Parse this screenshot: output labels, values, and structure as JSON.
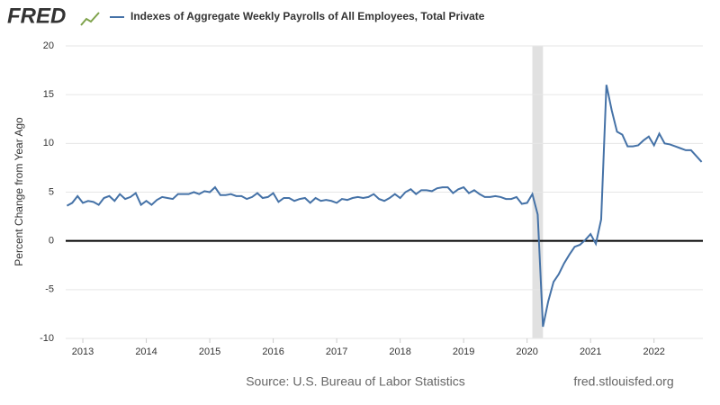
{
  "logo": "FRED",
  "chart_data": {
    "type": "line",
    "ylabel": "Percent Change from Year Ago",
    "source": "Source: U.S. Bureau of Labor Statistics",
    "site": "fred.stlouisfed.org",
    "x": [
      2012.75,
      2012.833,
      2012.917,
      2013.0,
      2013.083,
      2013.167,
      2013.25,
      2013.333,
      2013.417,
      2013.5,
      2013.583,
      2013.667,
      2013.75,
      2013.833,
      2013.917,
      2014.0,
      2014.083,
      2014.167,
      2014.25,
      2014.333,
      2014.417,
      2014.5,
      2014.583,
      2014.667,
      2014.75,
      2014.833,
      2014.917,
      2015.0,
      2015.083,
      2015.167,
      2015.25,
      2015.333,
      2015.417,
      2015.5,
      2015.583,
      2015.667,
      2015.75,
      2015.833,
      2015.917,
      2016.0,
      2016.083,
      2016.167,
      2016.25,
      2016.333,
      2016.417,
      2016.5,
      2016.583,
      2016.667,
      2016.75,
      2016.833,
      2016.917,
      2017.0,
      2017.083,
      2017.167,
      2017.25,
      2017.333,
      2017.417,
      2017.5,
      2017.583,
      2017.667,
      2017.75,
      2017.833,
      2017.917,
      2018.0,
      2018.083,
      2018.167,
      2018.25,
      2018.333,
      2018.417,
      2018.5,
      2018.583,
      2018.667,
      2018.75,
      2018.833,
      2018.917,
      2019.0,
      2019.083,
      2019.167,
      2019.25,
      2019.333,
      2019.417,
      2019.5,
      2019.583,
      2019.667,
      2019.75,
      2019.833,
      2019.917,
      2020.0,
      2020.083,
      2020.167,
      2020.25,
      2020.333,
      2020.417,
      2020.5,
      2020.583,
      2020.667,
      2020.75,
      2020.833,
      2020.917,
      2021.0,
      2021.083,
      2021.167,
      2021.25,
      2021.333,
      2021.417,
      2021.5,
      2021.583,
      2021.667,
      2021.75,
      2021.833,
      2021.917,
      2022.0,
      2022.083,
      2022.167,
      2022.25,
      2022.333,
      2022.417,
      2022.5,
      2022.583,
      2022.667,
      2022.75
    ],
    "series": [
      {
        "name": "Indexes of Aggregate Weekly Payrolls of All Employees, Total Private",
        "color": "#4572a7",
        "values": [
          3.6,
          3.9,
          4.6,
          3.9,
          4.1,
          4.0,
          3.7,
          4.4,
          4.6,
          4.1,
          4.8,
          4.3,
          4.5,
          4.9,
          3.7,
          4.1,
          3.7,
          4.2,
          4.5,
          4.4,
          4.3,
          4.8,
          4.8,
          4.8,
          5.0,
          4.8,
          5.1,
          5.0,
          5.5,
          4.7,
          4.7,
          4.8,
          4.6,
          4.6,
          4.3,
          4.5,
          4.9,
          4.4,
          4.5,
          4.9,
          4.0,
          4.4,
          4.4,
          4.1,
          4.3,
          4.4,
          3.9,
          4.4,
          4.1,
          4.2,
          4.1,
          3.9,
          4.3,
          4.2,
          4.4,
          4.5,
          4.4,
          4.5,
          4.8,
          4.3,
          4.1,
          4.4,
          4.8,
          4.4,
          5.0,
          5.3,
          4.8,
          5.2,
          5.2,
          5.1,
          5.4,
          5.5,
          5.5,
          4.9,
          5.3,
          5.5,
          4.9,
          5.2,
          4.8,
          4.5,
          4.5,
          4.6,
          4.5,
          4.3,
          4.3,
          4.5,
          3.8,
          3.9,
          4.8,
          2.7,
          -8.8,
          -6.2,
          -4.2,
          -3.4,
          -2.3,
          -1.4,
          -0.6,
          -0.4,
          0.1,
          0.7,
          -0.3,
          2.2,
          16.0,
          13.4,
          11.2,
          10.9,
          9.7,
          9.7,
          9.8,
          10.3,
          10.7,
          9.8,
          11.0,
          10.0,
          9.9,
          9.7,
          9.5,
          9.3,
          9.3,
          8.7,
          8.1
        ]
      }
    ],
    "recession": [
      2020.083,
      2020.25
    ],
    "xlim": [
      2012.73,
      2022.77
    ],
    "xticks": [
      2013,
      2014,
      2015,
      2016,
      2017,
      2018,
      2019,
      2020,
      2021,
      2022
    ],
    "ylim": [
      -10,
      20
    ],
    "yticks": [
      -10,
      -5,
      0,
      5,
      10,
      15,
      20
    ],
    "grid": true
  }
}
